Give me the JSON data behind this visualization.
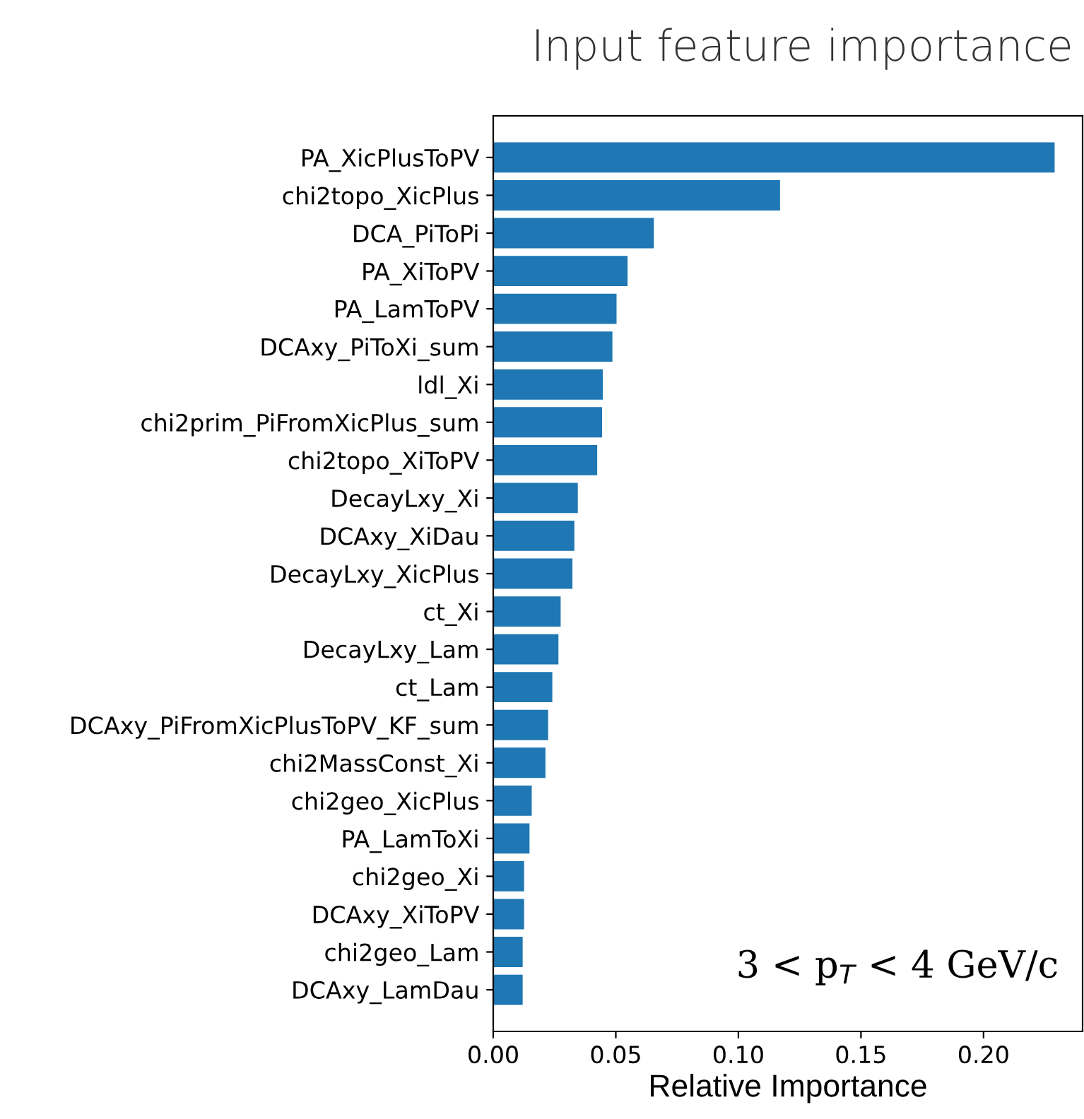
{
  "chart_data": {
    "type": "bar",
    "orientation": "horizontal",
    "title": "Input feature importance",
    "xlabel": "Relative Importance",
    "categories": [
      "PA_XicPlusToPV",
      "chi2topo_XicPlus",
      "DCA_PiToPi",
      "PA_XiToPV",
      "PA_LamToPV",
      "DCAxy_PiToXi_sum",
      "ldl_Xi",
      "chi2prim_PiFromXicPlus_sum",
      "chi2topo_XiToPV",
      "DecayLxy_Xi",
      "DCAxy_XiDau",
      "DecayLxy_XicPlus",
      "ct_Xi",
      "DecayLxy_Lam",
      "ct_Lam",
      "DCAxy_PiFromXicPlusToPV_KF_sum",
      "chi2MassConst_Xi",
      "chi2geo_XicPlus",
      "PA_LamToXi",
      "chi2geo_Xi",
      "DCAxy_XiToPV",
      "chi2geo_Lam",
      "DCAxy_LamDau"
    ],
    "values": [
      0.229,
      0.117,
      0.0655,
      0.0548,
      0.0503,
      0.0486,
      0.0447,
      0.0444,
      0.0424,
      0.0345,
      0.0331,
      0.0323,
      0.0275,
      0.0266,
      0.0241,
      0.0224,
      0.0213,
      0.0157,
      0.0148,
      0.0126,
      0.0126,
      0.012,
      0.012
    ],
    "color": "#1f77b4",
    "xlim": [
      0,
      0.2404
    ],
    "xticks": [
      {
        "value": 0,
        "label": "0.00"
      },
      {
        "value": 0.05,
        "label": "0.05"
      },
      {
        "value": 0.1,
        "label": "0.10"
      },
      {
        "value": 0.15,
        "label": "0.15"
      },
      {
        "value": 0.2,
        "label": "0.20"
      }
    ],
    "grid": false,
    "annotations": [
      "3 < p$_{T}$ < 4 GeV/c"
    ]
  }
}
